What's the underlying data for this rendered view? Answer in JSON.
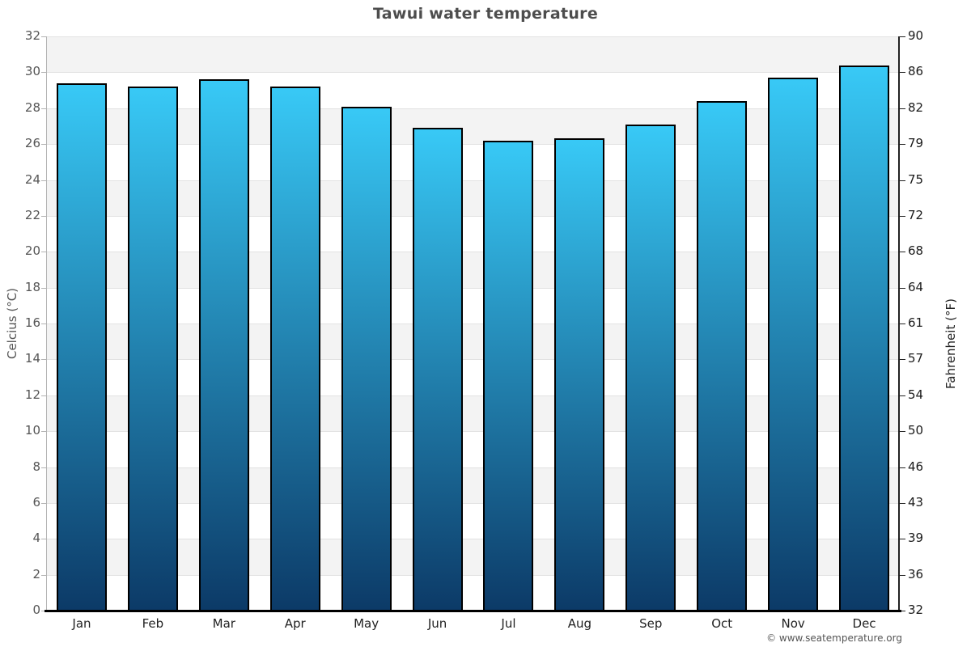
{
  "title": "Tawui water temperature",
  "footer": "© www.seatemperature.org",
  "axes": {
    "left_label": "Celcius (°C)",
    "right_label": "Fahrenheit (°F)"
  },
  "chart_data": {
    "type": "bar",
    "title": "Tawui water temperature",
    "categories": [
      "Jan",
      "Feb",
      "Mar",
      "Apr",
      "May",
      "Jun",
      "Jul",
      "Aug",
      "Sep",
      "Oct",
      "Nov",
      "Dec"
    ],
    "values": [
      29.4,
      29.2,
      29.6,
      29.2,
      28.1,
      26.9,
      26.2,
      26.3,
      27.1,
      28.4,
      29.7,
      30.4
    ],
    "unit": "°C",
    "xlabel": "",
    "ylabel_left": "Celcius (°C)",
    "ylabel_right": "Fahrenheit (°F)",
    "ylim": [
      0,
      32
    ],
    "yticks_celsius": [
      32,
      30,
      28,
      26,
      24,
      22,
      20,
      18,
      16,
      14,
      12,
      10,
      8,
      6,
      4,
      2,
      0
    ],
    "yticks_fahrenheit": [
      90,
      86,
      82,
      79,
      75,
      72,
      68,
      64,
      61,
      57,
      54,
      50,
      46,
      43,
      39,
      36,
      32
    ],
    "grid": "alternating-horizontal-bands",
    "legend": "none",
    "colors": {
      "bar_gradient_top": "#38c9f6",
      "bar_gradient_bottom": "#0c3a67",
      "bar_border": "#000000",
      "band_gray": "#f3f3f3",
      "band_white": "#ffffff",
      "gridline": "#e2e2e2",
      "title": "#4d4d4d",
      "tick_label_left": "#555555",
      "tick_label_right": "#1a1a1a",
      "axis_left_line": "#b3b3b3",
      "axis_right_line": "#222222",
      "axis_bottom_line": "#000000",
      "footer": "#555555"
    }
  }
}
